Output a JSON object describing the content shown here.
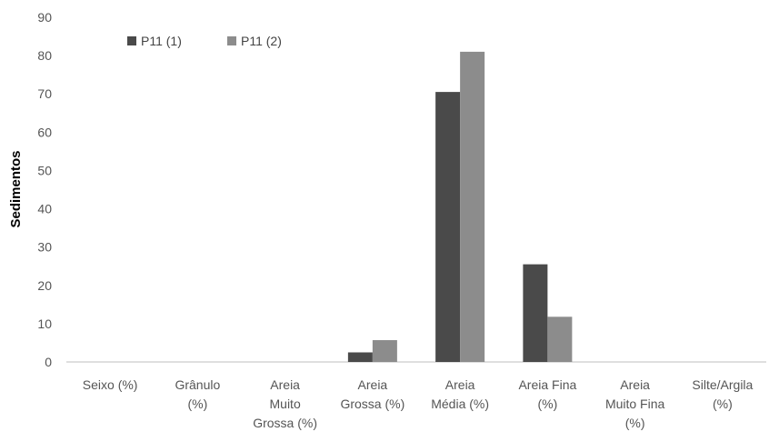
{
  "chart_data": {
    "type": "bar",
    "title": "",
    "xlabel": "",
    "ylabel": "Sedimentos",
    "ylim": [
      0,
      90
    ],
    "yticks": [
      0,
      10,
      20,
      30,
      40,
      50,
      60,
      70,
      80,
      90
    ],
    "grid": false,
    "legend_position": "top-left",
    "categories": [
      [
        "Seixo (%)"
      ],
      [
        "Grânulo",
        "(%)"
      ],
      [
        "Areia",
        "Muito",
        "Grossa (%)"
      ],
      [
        "Areia",
        "Grossa (%)"
      ],
      [
        "Areia",
        "Média (%)"
      ],
      [
        "Areia Fina",
        "(%)"
      ],
      [
        "Areia",
        "Muito Fina",
        "(%)"
      ],
      [
        "Silte/Argila",
        "(%)"
      ]
    ],
    "series": [
      {
        "name": "P11 (1)",
        "color": "#4a4a4a",
        "values": [
          0,
          0,
          0,
          2.5,
          70.5,
          25.5,
          0,
          0
        ]
      },
      {
        "name": "P11 (2)",
        "color": "#8c8c8c",
        "values": [
          0,
          0,
          0,
          5.7,
          81,
          11.8,
          0,
          0
        ]
      }
    ]
  }
}
